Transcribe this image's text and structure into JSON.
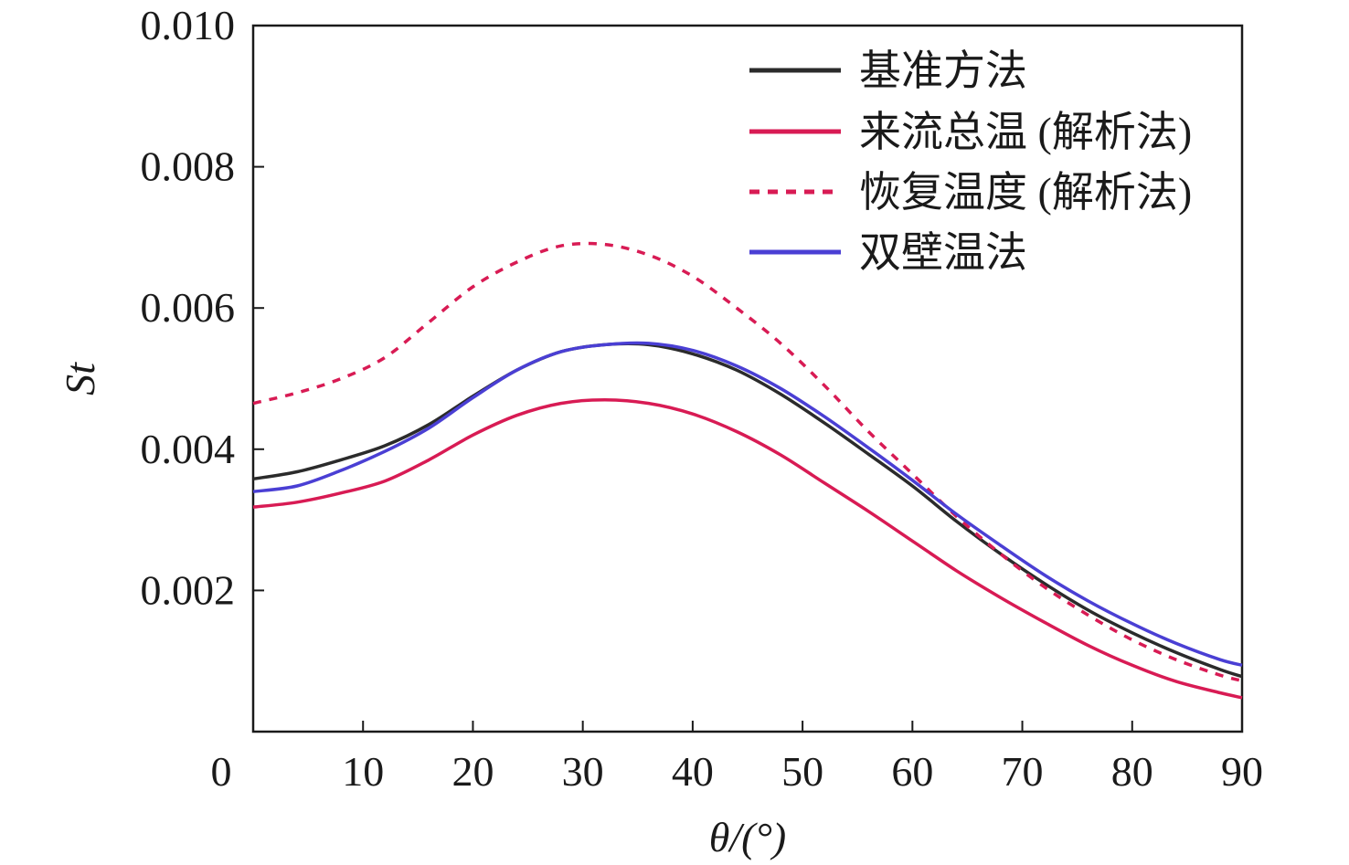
{
  "chart_data": {
    "type": "line",
    "xlabel": "θ/(°)",
    "ylabel": "St",
    "xlim": [
      0,
      90
    ],
    "ylim": [
      0,
      0.01
    ],
    "x_ticks": [
      "0",
      "10",
      "20",
      "30",
      "40",
      "50",
      "60",
      "70",
      "80",
      "90"
    ],
    "y_ticks": [
      "0.002",
      "0.004",
      "0.006",
      "0.008",
      "0.010"
    ],
    "x_tick_values": [
      0,
      10,
      20,
      30,
      40,
      50,
      60,
      70,
      80,
      90
    ],
    "y_tick_values": [
      0.002,
      0.004,
      0.006,
      0.008,
      0.01
    ],
    "grid": false,
    "legend_position": "top-right",
    "series": [
      {
        "name": "基准方法",
        "color": "#2b2b2b",
        "dash": "solid",
        "x": [
          0,
          4,
          8,
          12,
          16,
          20,
          24,
          28,
          32,
          36,
          40,
          44,
          48,
          52,
          56,
          60,
          64,
          68,
          72,
          76,
          80,
          84,
          88,
          90
        ],
        "y": [
          0.00358,
          0.00368,
          0.00385,
          0.00405,
          0.00435,
          0.00475,
          0.00512,
          0.00538,
          0.00548,
          0.00548,
          0.00535,
          0.00512,
          0.00478,
          0.00437,
          0.00393,
          0.00348,
          0.00298,
          0.00252,
          0.0021,
          0.00172,
          0.0014,
          0.00112,
          0.00088,
          0.00078
        ]
      },
      {
        "name": "来流总温 (解析法)",
        "color": "#d81b54",
        "dash": "solid",
        "x": [
          0,
          4,
          8,
          12,
          16,
          20,
          24,
          28,
          32,
          36,
          40,
          44,
          48,
          52,
          56,
          60,
          64,
          68,
          72,
          76,
          80,
          84,
          88,
          90
        ],
        "y": [
          0.00318,
          0.00325,
          0.00338,
          0.00355,
          0.00385,
          0.0042,
          0.00448,
          0.00465,
          0.0047,
          0.00465,
          0.0045,
          0.00425,
          0.00392,
          0.00352,
          0.00312,
          0.0027,
          0.00228,
          0.0019,
          0.00155,
          0.00122,
          0.00094,
          0.00071,
          0.00055,
          0.00048
        ]
      },
      {
        "name": "恢复温度 (解析法)",
        "color": "#d81b54",
        "dash": "dashed",
        "x": [
          0,
          4,
          8,
          12,
          16,
          20,
          24,
          28,
          32,
          36,
          40,
          44,
          48,
          52,
          56,
          60,
          64,
          68,
          72,
          76,
          80,
          84,
          88,
          90
        ],
        "y": [
          0.00465,
          0.0048,
          0.005,
          0.0053,
          0.0058,
          0.0063,
          0.00665,
          0.00688,
          0.0069,
          0.00675,
          0.00645,
          0.006,
          0.0055,
          0.0049,
          0.00425,
          0.00365,
          0.00305,
          0.00252,
          0.00205,
          0.00165,
          0.0013,
          0.00102,
          0.0008,
          0.00072
        ]
      },
      {
        "name": "双壁温法",
        "color": "#4a3fd4",
        "dash": "solid",
        "x": [
          0,
          4,
          8,
          12,
          16,
          20,
          24,
          28,
          32,
          36,
          40,
          44,
          48,
          52,
          56,
          60,
          64,
          68,
          72,
          76,
          80,
          84,
          88,
          90
        ],
        "y": [
          0.0034,
          0.00348,
          0.0037,
          0.00397,
          0.0043,
          0.00473,
          0.00512,
          0.00538,
          0.00548,
          0.0055,
          0.0054,
          0.00518,
          0.00486,
          0.00446,
          0.00402,
          0.00356,
          0.00308,
          0.00264,
          0.00222,
          0.00185,
          0.00153,
          0.00125,
          0.00102,
          0.00094
        ]
      }
    ]
  }
}
